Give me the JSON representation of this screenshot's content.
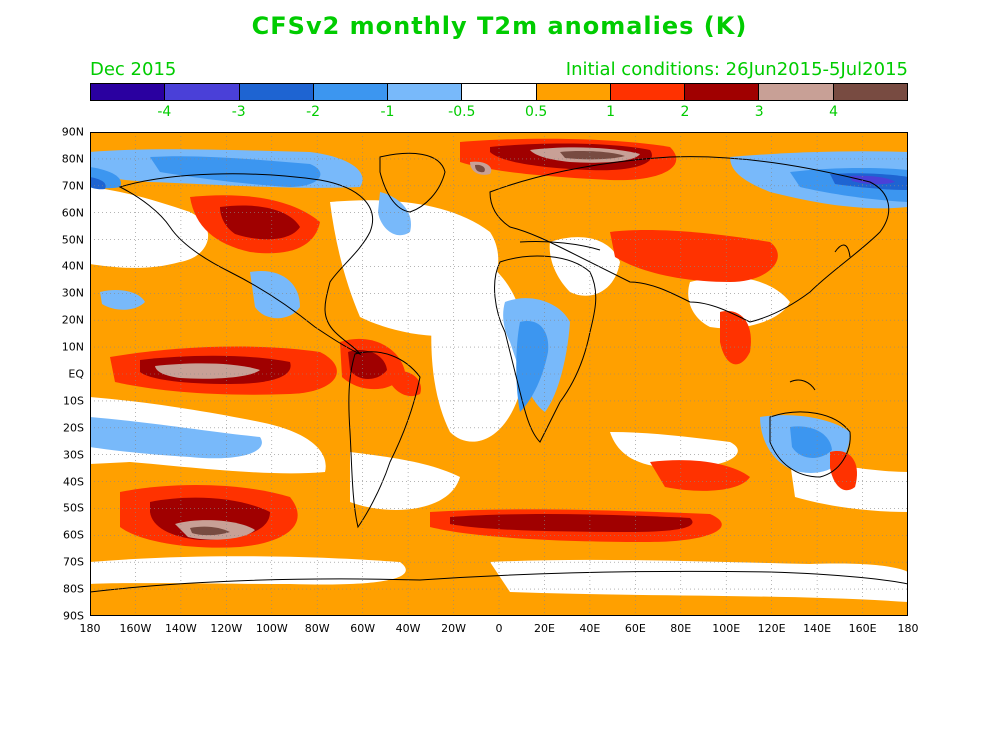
{
  "header": {
    "title": "CFSv2 monthly T2m anomalies (K)",
    "valid_month": "Dec 2015",
    "initial_conditions": "Initial conditions: 26Jun2015-5Jul2015"
  },
  "colorbar": {
    "colors": [
      "#2a00a0",
      "#4a40d8",
      "#1e64d2",
      "#3c96f0",
      "#78b9fa",
      "#ffffff",
      "#ffa000",
      "#ff3200",
      "#a00000",
      "#c8a096",
      "#784b41"
    ],
    "labels": [
      "-4",
      "-3",
      "-2",
      "-1",
      "-0.5",
      "0.5",
      "1",
      "2",
      "3",
      "4"
    ]
  },
  "axes": {
    "lat_labels": [
      "90N",
      "80N",
      "70N",
      "60N",
      "50N",
      "40N",
      "30N",
      "20N",
      "10N",
      "EQ",
      "10S",
      "20S",
      "30S",
      "40S",
      "50S",
      "60S",
      "70S",
      "80S",
      "90S"
    ],
    "lon_labels": [
      "180",
      "160W",
      "140W",
      "120W",
      "100W",
      "80W",
      "60W",
      "40W",
      "20W",
      "0",
      "20E",
      "40E",
      "60E",
      "80E",
      "100E",
      "120E",
      "140E",
      "160E",
      "180"
    ]
  },
  "map_data": {
    "variable": "T2m anomaly",
    "units": "K",
    "anomaly_regions": [
      {
        "region": "Central/Eastern equatorial Pacific",
        "level": "4"
      },
      {
        "region": "South Pacific near 60S 130W",
        "level": "4"
      },
      {
        "region": "Arctic north of Siberia",
        "level": "4"
      },
      {
        "region": "Western Canada",
        "level": "3"
      },
      {
        "region": "Southern Ocean 50S-60S",
        "level": "3"
      },
      {
        "region": "North Atlantic",
        "level": "2"
      },
      {
        "region": "Central Africa",
        "level": "-1"
      },
      {
        "region": "Australia",
        "level": "-1"
      },
      {
        "region": "Greenland and Canadian Archipelago",
        "level": "-2"
      },
      {
        "region": "Arctic near Bering Strait",
        "level": "-3"
      }
    ]
  }
}
